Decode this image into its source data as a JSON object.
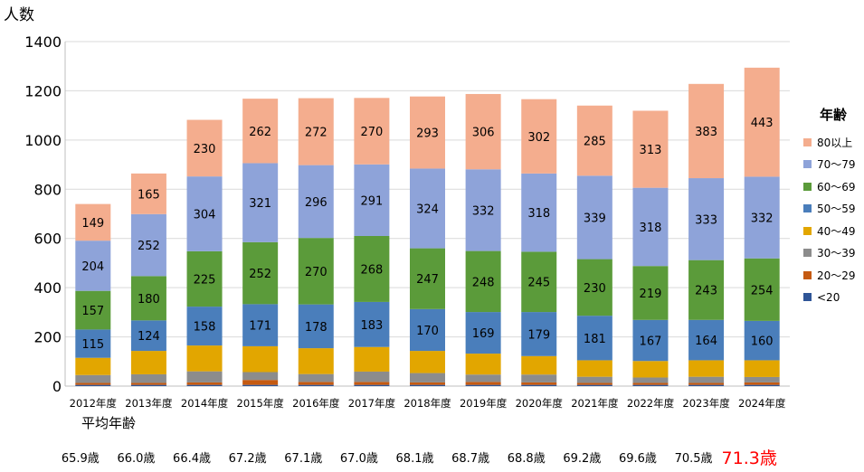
{
  "ylabel": "人数",
  "legend_title": "年齢",
  "avg_title": "平均年齢",
  "colors": {
    "lt20": "#2f5597",
    "20_29": "#c55a11",
    "30_39": "#8c8c8c",
    "40_49": "#e2a600",
    "50_59": "#4a7ebb",
    "60_69": "#5b9b3a",
    "70_79": "#8ea3d9",
    "80plus": "#f4ad8e",
    "avg_highlight": "#ff0000"
  },
  "chart_data": {
    "type": "bar",
    "stacked": true,
    "categories": [
      "2012年度",
      "2013年度",
      "2014年度",
      "2015年度",
      "2016年度",
      "2017年度",
      "2018年度",
      "2019年度",
      "2020年度",
      "2021年度",
      "2022年度",
      "2023年度",
      "2024年度"
    ],
    "ylim": [
      0,
      1400
    ],
    "yticks": [
      0,
      200,
      400,
      600,
      800,
      1000,
      1200,
      1400
    ],
    "grid": true,
    "legend_position": "right",
    "series": [
      {
        "key": "lt20",
        "name": "<20",
        "values": [
          5,
          5,
          5,
          5,
          5,
          5,
          5,
          5,
          5,
          5,
          5,
          5,
          5
        ],
        "show_labels": false
      },
      {
        "key": "20_29",
        "name": "20～29",
        "values": [
          8,
          8,
          10,
          20,
          12,
          12,
          10,
          12,
          10,
          8,
          8,
          8,
          10
        ],
        "show_labels": false
      },
      {
        "key": "30_39",
        "name": "30～39",
        "values": [
          32,
          35,
          45,
          32,
          32,
          42,
          38,
          30,
          32,
          25,
          22,
          25,
          22
        ],
        "show_labels": false
      },
      {
        "key": "40_49",
        "name": "40～49",
        "values": [
          70,
          95,
          105,
          105,
          105,
          100,
          90,
          85,
          75,
          67,
          67,
          67,
          68
        ],
        "show_labels": false
      },
      {
        "key": "50_59",
        "name": "50～59",
        "values": [
          115,
          124,
          158,
          171,
          178,
          183,
          170,
          169,
          179,
          181,
          167,
          164,
          160
        ],
        "show_labels": true
      },
      {
        "key": "60_69",
        "name": "60～69",
        "values": [
          157,
          180,
          225,
          252,
          270,
          268,
          247,
          248,
          245,
          230,
          219,
          243,
          254
        ],
        "show_labels": true
      },
      {
        "key": "70_79",
        "name": "70～79",
        "values": [
          204,
          252,
          304,
          321,
          296,
          291,
          324,
          332,
          318,
          339,
          318,
          333,
          332
        ],
        "show_labels": true
      },
      {
        "key": "80plus",
        "name": "80以上",
        "values": [
          149,
          165,
          230,
          262,
          272,
          270,
          293,
          306,
          302,
          285,
          313,
          383,
          443
        ],
        "show_labels": true
      }
    ]
  },
  "avg_ages": [
    "65.9歳",
    "66.0歳",
    "66.4歳",
    "67.2歳",
    "67.1歳",
    "67.0歳",
    "68.1歳",
    "68.7歳",
    "68.8歳",
    "69.2歳",
    "69.6歳",
    "70.5歳",
    "71.3歳"
  ],
  "avg_highlight_index": 12
}
